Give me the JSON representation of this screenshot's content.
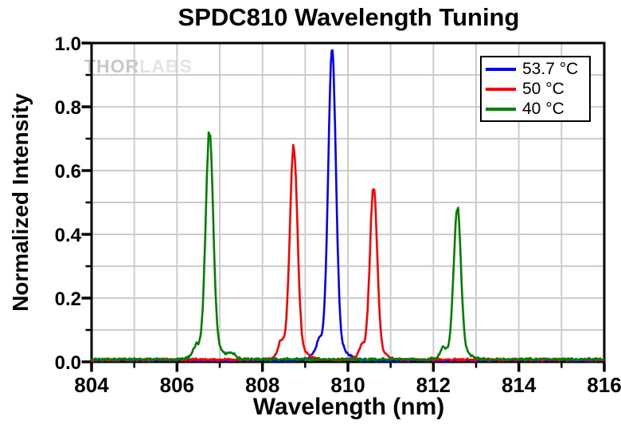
{
  "watermark": {
    "part1": "THOR",
    "part2": "LABS"
  },
  "colors": {
    "background": "#ffffff",
    "frame": "#000000",
    "grid": "#cccccc",
    "text": "#000000",
    "watermark_dark": "#c7c7c7",
    "watermark_light": "#e4e4e4",
    "series_blue": "#0000ff",
    "series_red": "#ff0000",
    "series_green": "#008000"
  },
  "chart_data": {
    "type": "line",
    "title": "SPDC810 Wavelength Tuning",
    "xlabel": "Wavelength (nm)",
    "ylabel": "Normalized Intensity",
    "xlim": [
      804,
      816
    ],
    "ylim": [
      0.0,
      1.0
    ],
    "x_major_ticks": [
      "804",
      "806",
      "808",
      "810",
      "812",
      "814",
      "816"
    ],
    "x_minor_step_nm": 1,
    "y_major_ticks": [
      "0.0",
      "0.2",
      "0.4",
      "0.6",
      "0.8",
      "1.0"
    ],
    "y_minor_step": 0.1,
    "grid": {
      "show": true,
      "x_spacing_nm": 1,
      "y_spacing": 0.1,
      "color": "#cccccc"
    },
    "legend": {
      "position": "top-right",
      "entries": [
        {
          "label": "53.7 °C",
          "color": "#0000ff"
        },
        {
          "label": "50 °C",
          "color": "#ff0000"
        },
        {
          "label": "40 °C",
          "color": "#008000"
        }
      ]
    },
    "series": [
      {
        "name": "53.7 °C",
        "color": "#0000ff",
        "baseline": 0.005,
        "noise": 0.0045,
        "seed": 7,
        "peak_readout": [
          {
            "wavelength_nm": 809.6,
            "intensity": 0.99
          }
        ],
        "peaks": [
          {
            "center": 809.63,
            "height": 0.912,
            "sigma": 0.088
          },
          {
            "center": 809.6,
            "height": 0.068,
            "sigma": 0.26
          },
          {
            "center": 809.32,
            "height": 0.028,
            "sigma": 0.055
          }
        ]
      },
      {
        "name": "50 °C",
        "color": "#ff0000",
        "baseline": 0.007,
        "noise": 0.0045,
        "seed": 13,
        "peak_readout": [
          {
            "wavelength_nm": 808.7,
            "intensity": 0.68
          },
          {
            "wavelength_nm": 810.6,
            "intensity": 0.55
          }
        ],
        "peaks": [
          {
            "center": 808.73,
            "height": 0.625,
            "sigma": 0.086
          },
          {
            "center": 808.71,
            "height": 0.05,
            "sigma": 0.24
          },
          {
            "center": 808.43,
            "height": 0.036,
            "sigma": 0.055
          },
          {
            "center": 810.6,
            "height": 0.502,
            "sigma": 0.082
          },
          {
            "center": 810.58,
            "height": 0.042,
            "sigma": 0.22
          },
          {
            "center": 810.32,
            "height": 0.026,
            "sigma": 0.055
          }
        ]
      },
      {
        "name": "40 °C",
        "color": "#008000",
        "baseline": 0.008,
        "noise": 0.005,
        "seed": 5,
        "peak_readout": [
          {
            "wavelength_nm": 806.8,
            "intensity": 0.72
          },
          {
            "wavelength_nm": 812.6,
            "intensity": 0.49
          }
        ],
        "peaks": [
          {
            "center": 806.76,
            "height": 0.662,
            "sigma": 0.086
          },
          {
            "center": 806.76,
            "height": 0.052,
            "sigma": 0.24
          },
          {
            "center": 806.44,
            "height": 0.024,
            "sigma": 0.065
          },
          {
            "center": 807.28,
            "height": 0.016,
            "sigma": 0.09
          },
          {
            "center": 812.56,
            "height": 0.442,
            "sigma": 0.082
          },
          {
            "center": 812.55,
            "height": 0.04,
            "sigma": 0.22
          },
          {
            "center": 812.22,
            "height": 0.024,
            "sigma": 0.06
          }
        ]
      }
    ]
  }
}
